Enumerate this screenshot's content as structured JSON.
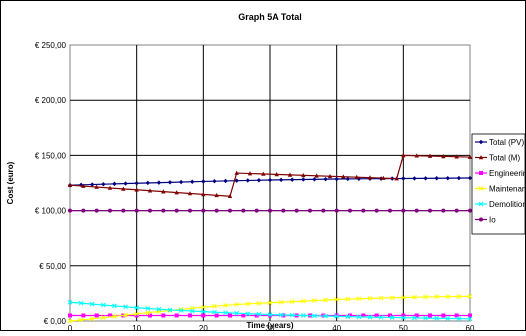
{
  "chart_data": {
    "type": "line",
    "title": "Graph 5A Total",
    "xlabel": "Time (years)",
    "ylabel": "Cost (euro)",
    "xlim": [
      0,
      60
    ],
    "ylim": [
      0,
      250
    ],
    "x_ticks": [
      0,
      10,
      20,
      30,
      40,
      50,
      60
    ],
    "x_tick_labels": [
      "0",
      "10",
      "20",
      "30",
      "40",
      "50",
      "60"
    ],
    "y_ticks": [
      0,
      50,
      100,
      150,
      200,
      250
    ],
    "y_tick_labels": [
      "€ 0,00",
      "€ 50,00",
      "€ 100,00",
      "€ 150,00",
      "€ 200,00",
      "€ 250,00"
    ],
    "grid": true,
    "legend_position": "right",
    "series": [
      {
        "name": "Total (PV)",
        "color": "#000080",
        "marker": "diamond",
        "points": [
          [
            0,
            123
          ],
          [
            5,
            123.9
          ],
          [
            10,
            124.8
          ],
          [
            15,
            125.6
          ],
          [
            20,
            126.4
          ],
          [
            25,
            127.1
          ],
          [
            30,
            127.7
          ],
          [
            35,
            128.2
          ],
          [
            40,
            128.6
          ],
          [
            45,
            128.9
          ],
          [
            50,
            129.1
          ],
          [
            55,
            129.3
          ],
          [
            60,
            129.5
          ]
        ]
      },
      {
        "name": "Total (M)",
        "color": "#800000",
        "marker": "triangle",
        "points": [
          [
            0,
            123
          ],
          [
            24,
            113
          ],
          [
            25,
            134
          ],
          [
            49,
            129
          ],
          [
            50,
            150
          ],
          [
            60,
            148.5
          ]
        ]
      },
      {
        "name": "Engineering",
        "color": "#ff00ff",
        "marker": "square",
        "points": [
          [
            0,
            5
          ],
          [
            60,
            5
          ]
        ]
      },
      {
        "name": "Maintenance (PV",
        "color": "#ffff00",
        "marker": "x",
        "points": [
          [
            0,
            0
          ],
          [
            5,
            3
          ],
          [
            10,
            6.5
          ],
          [
            15,
            9.5
          ],
          [
            20,
            12.5
          ],
          [
            25,
            15
          ],
          [
            30,
            16.5
          ],
          [
            35,
            18
          ],
          [
            40,
            19.5
          ],
          [
            45,
            20.5
          ],
          [
            50,
            21.3
          ],
          [
            55,
            22
          ],
          [
            60,
            22.3
          ]
        ]
      },
      {
        "name": "Demolition",
        "color": "#00ffff",
        "marker": "x",
        "points": [
          [
            0,
            17
          ],
          [
            5,
            14.5
          ],
          [
            10,
            12
          ],
          [
            15,
            10
          ],
          [
            20,
            8.5
          ],
          [
            25,
            7
          ],
          [
            30,
            5.8
          ],
          [
            35,
            5
          ],
          [
            40,
            4.2
          ],
          [
            45,
            3.5
          ],
          [
            50,
            3
          ],
          [
            55,
            2.5
          ],
          [
            60,
            2
          ]
        ]
      },
      {
        "name": "Io",
        "color": "#800080",
        "marker": "circle",
        "points": [
          [
            0,
            100
          ],
          [
            60,
            100
          ]
        ]
      }
    ]
  }
}
